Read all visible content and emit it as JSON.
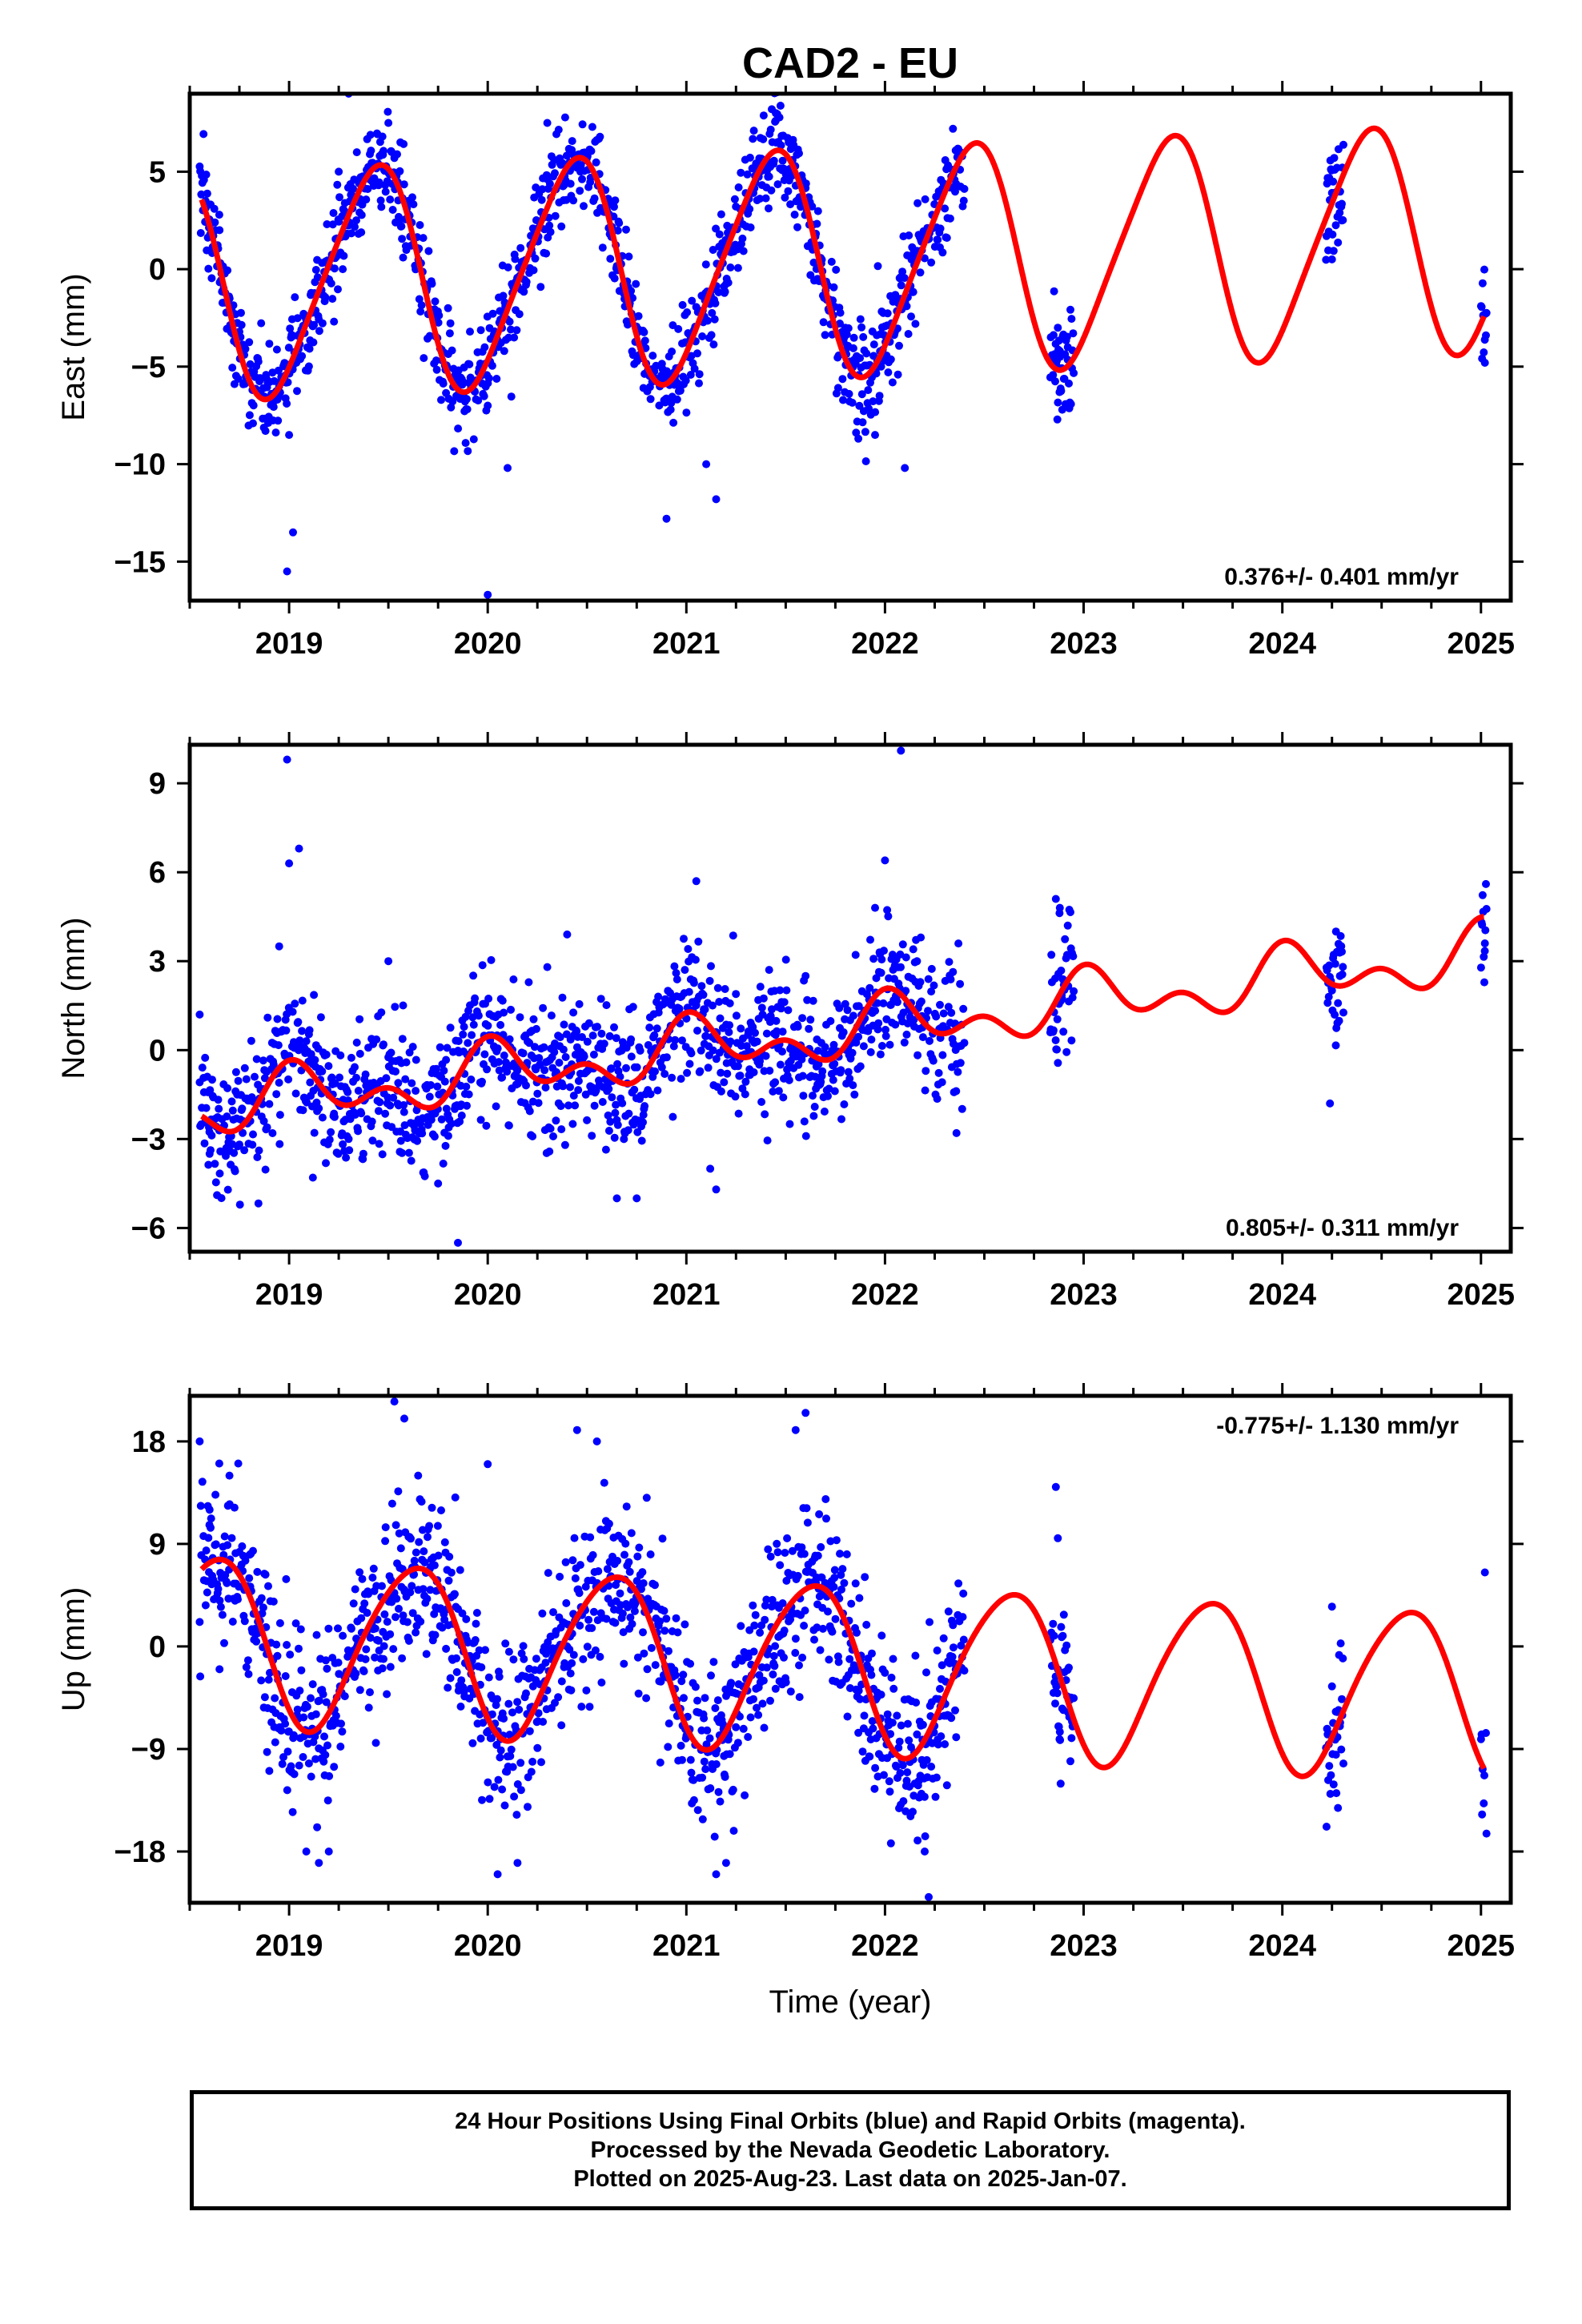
{
  "chart_data": {
    "title": "CAD2 - EU",
    "xlabel": "Time (year)",
    "xlim": [
      2018.5,
      2025.15
    ],
    "x_ticks": [
      2019,
      2020,
      2021,
      2022,
      2023,
      2024,
      2025
    ],
    "colors": {
      "data_points": "#0000ff",
      "model_fit": "#ff0000"
    },
    "panels": [
      {
        "type": "scatter",
        "ylabel": "East (mm)",
        "ylim": [
          -17,
          9
        ],
        "y_ticks": [
          5,
          0,
          -5,
          -10,
          -15
        ],
        "y_tick_labels": [
          "5",
          "0",
          "−5",
          "−10",
          "−15"
        ],
        "rate": "0.376+/- 0.401 mm/yr",
        "rate_position": "bottom-right",
        "data_gaps": [
          [
            2022.4,
            2022.83
          ],
          [
            2022.95,
            2024.22
          ],
          [
            2024.31,
            2025.0
          ]
        ],
        "model": {
          "mean_offset": 0.25,
          "trend_mm_per_yr": 0.376,
          "trend_t0": 2021.5,
          "annual_amplitude": 5.7,
          "annual_phase_peak": 2019.42,
          "semiannual_amplitude": 0.8,
          "semiannual_phase_peak": 2019.55
        },
        "noise_sigma": 1.3,
        "points": [
          {
            "x": 2018.58,
            "y": 3.5
          },
          {
            "x": 2018.65,
            "y": 2.0
          },
          {
            "x": 2018.95,
            "y": -6.0
          },
          {
            "x": 2019.0,
            "y": -8.5
          },
          {
            "x": 2018.99,
            "y": -15.5
          },
          {
            "x": 2019.02,
            "y": -13.5
          },
          {
            "x": 2019.25,
            "y": 5.0
          },
          {
            "x": 2019.3,
            "y": 9.0
          },
          {
            "x": 2019.5,
            "y": 7.5
          },
          {
            "x": 2019.8,
            "y": -2.0
          },
          {
            "x": 2020.0,
            "y": -7.0
          },
          {
            "x": 2020.0,
            "y": -16.7
          },
          {
            "x": 2020.1,
            "y": -10.2
          },
          {
            "x": 2020.3,
            "y": 7.5
          },
          {
            "x": 2020.6,
            "y": 3.0
          },
          {
            "x": 2020.9,
            "y": -12.8
          },
          {
            "x": 2021.1,
            "y": -10.0
          },
          {
            "x": 2021.15,
            "y": -11.8
          },
          {
            "x": 2021.45,
            "y": 8.0
          },
          {
            "x": 2021.8,
            "y": -3.0
          },
          {
            "x": 2021.95,
            "y": -8.5
          },
          {
            "x": 2022.1,
            "y": -10.2
          },
          {
            "x": 2022.38,
            "y": 6.0
          },
          {
            "x": 2022.87,
            "y": -3.0
          },
          {
            "x": 2022.88,
            "y": -4.2
          },
          {
            "x": 2022.92,
            "y": -4.0
          },
          {
            "x": 2024.25,
            "y": 0.5
          },
          {
            "x": 2024.28,
            "y": 4.0
          },
          {
            "x": 2024.3,
            "y": 2.5
          },
          {
            "x": 2025.02,
            "y": -4.8
          }
        ]
      },
      {
        "type": "scatter",
        "ylabel": "North (mm)",
        "ylim": [
          -6.8,
          10.3
        ],
        "y_ticks": [
          9,
          6,
          3,
          0,
          -3,
          -6
        ],
        "y_tick_labels": [
          "9",
          "6",
          "3",
          "0",
          "−3",
          "−6"
        ],
        "rate": "0.805+/- 0.311 mm/yr",
        "rate_position": "bottom-right",
        "data_gaps": [
          [
            2022.4,
            2022.83
          ],
          [
            2022.95,
            2024.22
          ],
          [
            2024.31,
            2025.0
          ]
        ],
        "model": {
          "mean_offset": 0.4,
          "trend_mm_per_yr": 0.805,
          "trend_t0": 2021.5,
          "annual_amplitude": 0.7,
          "annual_phase_peak": 2019.05,
          "semiannual_amplitude": 0.6,
          "semiannual_phase_peak": 2019.0
        },
        "noise_sigma": 1.15,
        "points": [
          {
            "x": 2018.55,
            "y": 1.2
          },
          {
            "x": 2018.6,
            "y": -3.5
          },
          {
            "x": 2018.95,
            "y": 3.5
          },
          {
            "x": 2018.99,
            "y": 9.8
          },
          {
            "x": 2019.0,
            "y": 6.3
          },
          {
            "x": 2019.05,
            "y": 6.8
          },
          {
            "x": 2019.12,
            "y": -4.3
          },
          {
            "x": 2019.5,
            "y": 3.0
          },
          {
            "x": 2019.75,
            "y": -4.5
          },
          {
            "x": 2019.85,
            "y": -6.5
          },
          {
            "x": 2020.3,
            "y": 2.8
          },
          {
            "x": 2020.4,
            "y": 3.9
          },
          {
            "x": 2020.65,
            "y": -5.0
          },
          {
            "x": 2020.75,
            "y": -5.0
          },
          {
            "x": 2021.05,
            "y": 5.7
          },
          {
            "x": 2021.12,
            "y": -4.0
          },
          {
            "x": 2021.15,
            "y": -4.7
          },
          {
            "x": 2021.6,
            "y": 2.5
          },
          {
            "x": 2021.95,
            "y": 4.8
          },
          {
            "x": 2022.0,
            "y": 6.4
          },
          {
            "x": 2022.08,
            "y": 10.1
          },
          {
            "x": 2022.18,
            "y": 3.8
          },
          {
            "x": 2022.36,
            "y": -2.8
          },
          {
            "x": 2022.86,
            "y": 5.1
          },
          {
            "x": 2022.88,
            "y": 4.8
          },
          {
            "x": 2022.92,
            "y": 4.2
          },
          {
            "x": 2024.24,
            "y": -1.8
          },
          {
            "x": 2024.27,
            "y": 4.0
          },
          {
            "x": 2024.29,
            "y": 2.5
          },
          {
            "x": 2025.02,
            "y": 3.6
          }
        ]
      },
      {
        "type": "scatter",
        "ylabel": "Up (mm)",
        "ylim": [
          -22.5,
          22
        ],
        "y_ticks": [
          18,
          9,
          0,
          -9,
          -18
        ],
        "y_tick_labels": [
          "18",
          "9",
          "0",
          "−9",
          "−18"
        ],
        "rate": "-0.775+/- 1.130 mm/yr",
        "rate_position": "top-right",
        "data_gaps": [
          [
            2022.4,
            2022.83
          ],
          [
            2022.95,
            2024.22
          ],
          [
            2024.31,
            2025.0
          ]
        ],
        "model": {
          "mean_offset": -1.5,
          "trend_mm_per_yr": -0.775,
          "trend_t0": 2021.5,
          "annual_amplitude": 7.3,
          "annual_phase_peak": 2019.62,
          "semiannual_amplitude": 0.8,
          "semiannual_phase_peak": 2019.3
        },
        "noise_sigma": 3.6,
        "points": [
          {
            "x": 2018.55,
            "y": 18.0
          },
          {
            "x": 2018.6,
            "y": 12.0
          },
          {
            "x": 2018.65,
            "y": -2.0
          },
          {
            "x": 2018.7,
            "y": 15.0
          },
          {
            "x": 2019.15,
            "y": -19.0
          },
          {
            "x": 2019.2,
            "y": -18.0
          },
          {
            "x": 2019.53,
            "y": 21.5
          },
          {
            "x": 2019.58,
            "y": 20.0
          },
          {
            "x": 2019.65,
            "y": 15.0
          },
          {
            "x": 2020.0,
            "y": 16.0
          },
          {
            "x": 2020.05,
            "y": -20.0
          },
          {
            "x": 2020.15,
            "y": -19.0
          },
          {
            "x": 2020.45,
            "y": 19.0
          },
          {
            "x": 2020.55,
            "y": 18.0
          },
          {
            "x": 2021.15,
            "y": -20.0
          },
          {
            "x": 2021.2,
            "y": -19.0
          },
          {
            "x": 2021.6,
            "y": 20.5
          },
          {
            "x": 2021.55,
            "y": 19.0
          },
          {
            "x": 2022.2,
            "y": -18.0
          },
          {
            "x": 2022.22,
            "y": -22.0
          },
          {
            "x": 2022.86,
            "y": 14.0
          },
          {
            "x": 2022.87,
            "y": 9.5
          },
          {
            "x": 2022.88,
            "y": -7.5
          },
          {
            "x": 2024.25,
            "y": 3.5
          },
          {
            "x": 2024.27,
            "y": -9.5
          },
          {
            "x": 2024.29,
            "y": -7.0
          },
          {
            "x": 2025.02,
            "y": 6.5
          }
        ]
      }
    ]
  },
  "footer": {
    "line1": "24 Hour Positions Using Final Orbits (blue) and Rapid Orbits (magenta).",
    "line2": "Processed by the Nevada Geodetic Laboratory.",
    "line3": "Plotted on 2025-Aug-23. Last data on 2025-Jan-07."
  }
}
